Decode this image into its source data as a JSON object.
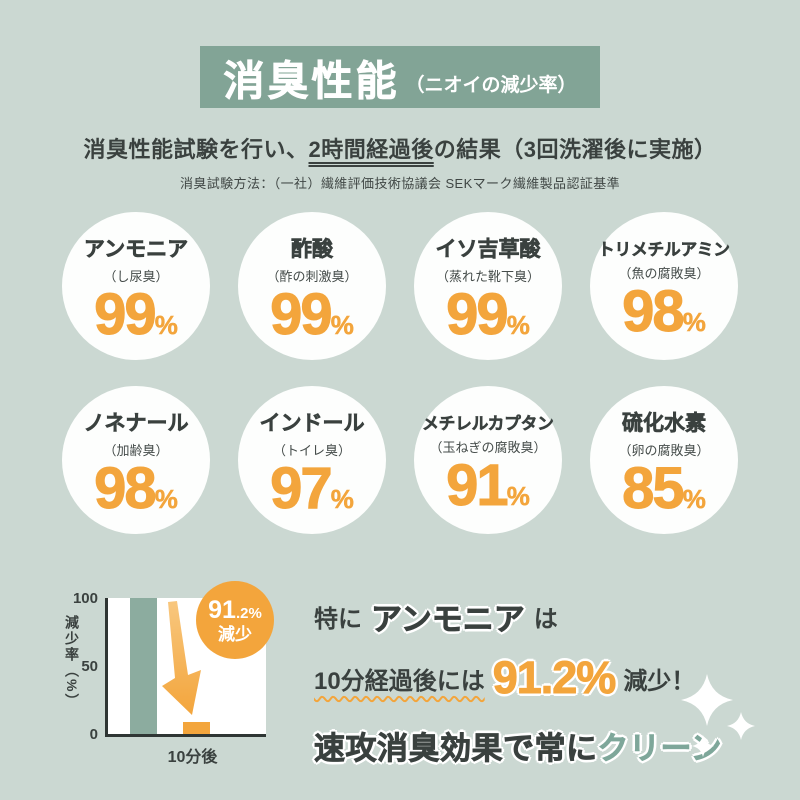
{
  "colors": {
    "background": "#cbd8d2",
    "band_green": "#82a496",
    "dark_text": "#3a413f",
    "accent_orange": "#f3a53c",
    "bar_teal": "#8cac9f",
    "clean_green": "#7ea79a",
    "white": "#ffffff"
  },
  "header": {
    "title": "消臭性能",
    "note": "（ニオイの減少率）"
  },
  "intro": {
    "pre": "消臭性能試験を行い、",
    "underlined": "2時間経過後",
    "post": "の結果（3回洗濯後に実施）",
    "method": "消臭試験方法：（一社）繊維評価技術協議会 SEKマーク繊維製品認証基準"
  },
  "odors": [
    {
      "name": "アンモニア",
      "source": "（し尿臭）",
      "value": "99",
      "unit": "%"
    },
    {
      "name": "酢酸",
      "source": "（酢の刺激臭）",
      "value": "99",
      "unit": "%"
    },
    {
      "name": "イソ吉草酸",
      "source": "（蒸れた靴下臭）",
      "value": "99",
      "unit": "%"
    },
    {
      "name": "トリメチルアミン",
      "source": "（魚の腐敗臭）",
      "value": "98",
      "unit": "%"
    },
    {
      "name": "ノネナール",
      "source": "（加齢臭）",
      "value": "98",
      "unit": "%"
    },
    {
      "name": "インドール",
      "source": "（トイレ臭）",
      "value": "97",
      "unit": "%"
    },
    {
      "name": "メチレルカプタン",
      "source": "（玉ねぎの腐敗臭）",
      "value": "91",
      "unit": "%"
    },
    {
      "name": "硫化水素",
      "source": "（卵の腐敗臭）",
      "value": "85",
      "unit": "%"
    }
  ],
  "chart_data": [
    {
      "type": "bar",
      "title": "消臭性能（ニオイの減少率） 2時間経過後・3回洗濯後",
      "categories": [
        "アンモニア",
        "酢酸",
        "イソ吉草酸",
        "トリメチルアミン",
        "ノネナール",
        "インドール",
        "メチレルカプタン",
        "硫化水素"
      ],
      "values": [
        99,
        99,
        99,
        98,
        98,
        97,
        91,
        85
      ],
      "unit": "%",
      "ylim": [
        0,
        100
      ],
      "grid": false
    },
    {
      "type": "bar",
      "categories": [
        "",
        "10分後"
      ],
      "values": [
        100,
        8.8
      ],
      "ylabel": "減少率（%）",
      "xlabel": "10分後",
      "yticks": [
        "100",
        "50",
        "0"
      ],
      "ylim": [
        0,
        100
      ],
      "bar_colors": [
        "#8cac9f",
        "#f3a53c"
      ],
      "annotation": {
        "value": "91",
        "decimal": ".2%",
        "label": "減少"
      },
      "grid": false
    }
  ],
  "highlight": {
    "pre1": "特に",
    "em1": "アンモニア",
    "post1": "は",
    "underlined2": "10分経過後には",
    "value2": "91.2%",
    "post2": "減少！",
    "pre3": "速攻消臭効果で常に",
    "em3": "クリーン"
  }
}
